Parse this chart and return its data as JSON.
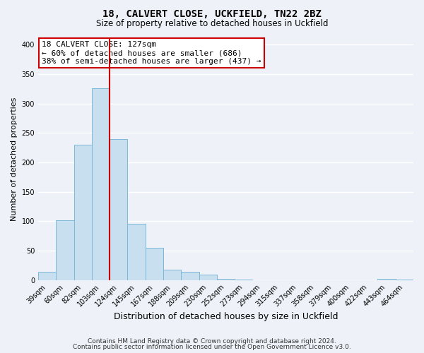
{
  "title1": "18, CALVERT CLOSE, UCKFIELD, TN22 2BZ",
  "title2": "Size of property relative to detached houses in Uckfield",
  "xlabel": "Distribution of detached houses by size in Uckfield",
  "ylabel": "Number of detached properties",
  "bar_labels": [
    "39sqm",
    "60sqm",
    "82sqm",
    "103sqm",
    "124sqm",
    "145sqm",
    "167sqm",
    "188sqm",
    "209sqm",
    "230sqm",
    "252sqm",
    "273sqm",
    "294sqm",
    "315sqm",
    "337sqm",
    "358sqm",
    "379sqm",
    "400sqm",
    "422sqm",
    "443sqm",
    "464sqm"
  ],
  "bar_values": [
    14,
    101,
    230,
    326,
    240,
    96,
    55,
    17,
    14,
    9,
    2,
    1,
    0,
    0,
    0,
    0,
    0,
    0,
    0,
    2,
    1
  ],
  "bar_color": "#c8dff0",
  "bar_edge_color": "#7db8d8",
  "vline_color": "#cc0000",
  "ylim": [
    0,
    410
  ],
  "yticks": [
    0,
    50,
    100,
    150,
    200,
    250,
    300,
    350,
    400
  ],
  "annotation_title": "18 CALVERT CLOSE: 127sqm",
  "annotation_line1": "← 60% of detached houses are smaller (686)",
  "annotation_line2": "38% of semi-detached houses are larger (437) →",
  "annotation_box_color": "#ffffff",
  "annotation_box_edge": "#cc0000",
  "footer1": "Contains HM Land Registry data © Crown copyright and database right 2024.",
  "footer2": "Contains public sector information licensed under the Open Government Licence v3.0.",
  "bg_color": "#eef2f8",
  "plot_bg_color": "#eef2f8",
  "grid_color": "#ffffff",
  "title1_fontsize": 10,
  "title2_fontsize": 8.5,
  "ylabel_fontsize": 8,
  "xlabel_fontsize": 9,
  "tick_fontsize": 7,
  "ann_fontsize": 8,
  "footer_fontsize": 6.5
}
